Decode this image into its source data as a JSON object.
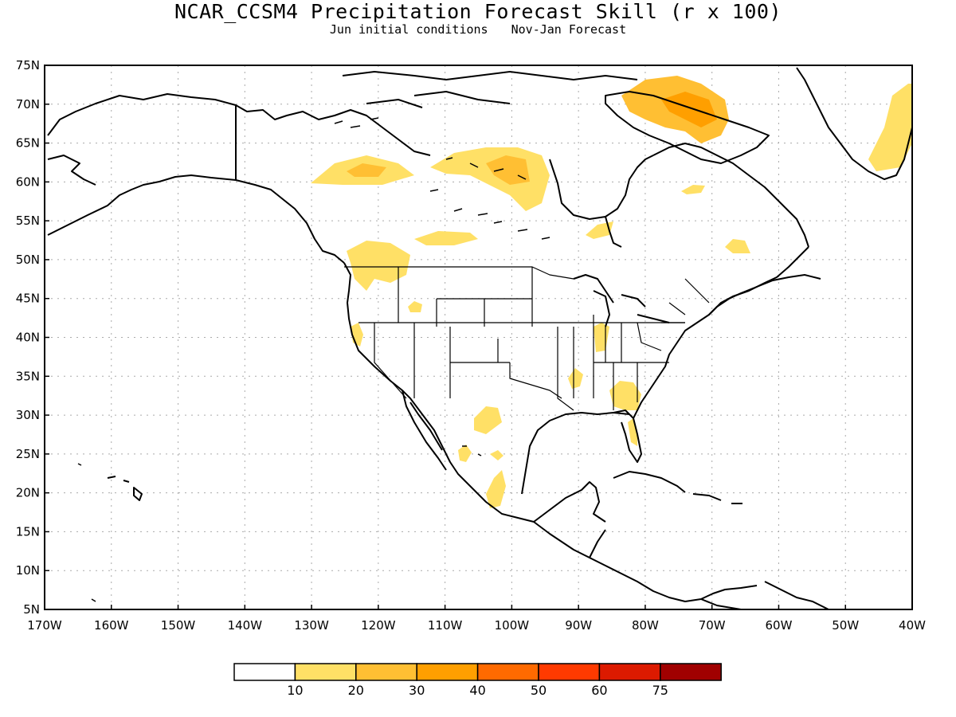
{
  "title": "NCAR_CCSM4 Precipitation Forecast Skill (r x 100)",
  "subtitle": {
    "left": "Jun initial conditions",
    "right": "Nov-Jan Forecast"
  },
  "map": {
    "lat_labels": [
      "75N",
      "70N",
      "65N",
      "60N",
      "55N",
      "50N",
      "45N",
      "40N",
      "35N",
      "30N",
      "25N",
      "20N",
      "15N",
      "10N",
      "5N"
    ],
    "lon_labels": [
      "170W",
      "160W",
      "150W",
      "140W",
      "130W",
      "120W",
      "110W",
      "100W",
      "90W",
      "80W",
      "70W",
      "60W",
      "50W",
      "40W"
    ],
    "lat_range": [
      5,
      75
    ],
    "lon_range": [
      -170,
      -40
    ],
    "grid": true,
    "coastline_color": "#000000",
    "skill_regions": [
      {
        "name": "Yukon / NW Canada",
        "level": 1
      },
      {
        "name": "Northern Alberta",
        "level": 2
      },
      {
        "name": "Northern Manitoba / Hudson Bay west",
        "level": 1
      },
      {
        "name": "Northwest Territories east",
        "level": 2
      },
      {
        "name": "Baffin Island",
        "level": 2
      },
      {
        "name": "Baffin Island core",
        "level": 3
      },
      {
        "name": "Greenland east coast",
        "level": 1
      },
      {
        "name": "Pacific Northwest",
        "level": 1
      },
      {
        "name": "Saskatchewan",
        "level": 1
      },
      {
        "name": "Northern Ontario",
        "level": 1
      },
      {
        "name": "Labrador",
        "level": 1
      },
      {
        "name": "Northern California",
        "level": 1
      },
      {
        "name": "Indiana / Ohio valley",
        "level": 1
      },
      {
        "name": "Georgia / Florida",
        "level": 1
      },
      {
        "name": "Tennessee valley",
        "level": 1
      },
      {
        "name": "Northern Mexico",
        "level": 1
      },
      {
        "name": "Central Mexico",
        "level": 1
      }
    ]
  },
  "colorbar": {
    "colors": [
      "#ffffff",
      "#ffe066",
      "#ffbf33",
      "#ff9f00",
      "#ff6a00",
      "#ff3a00",
      "#dc1a00",
      "#a00000"
    ],
    "labels": [
      "10",
      "20",
      "30",
      "40",
      "50",
      "60",
      "75"
    ]
  }
}
